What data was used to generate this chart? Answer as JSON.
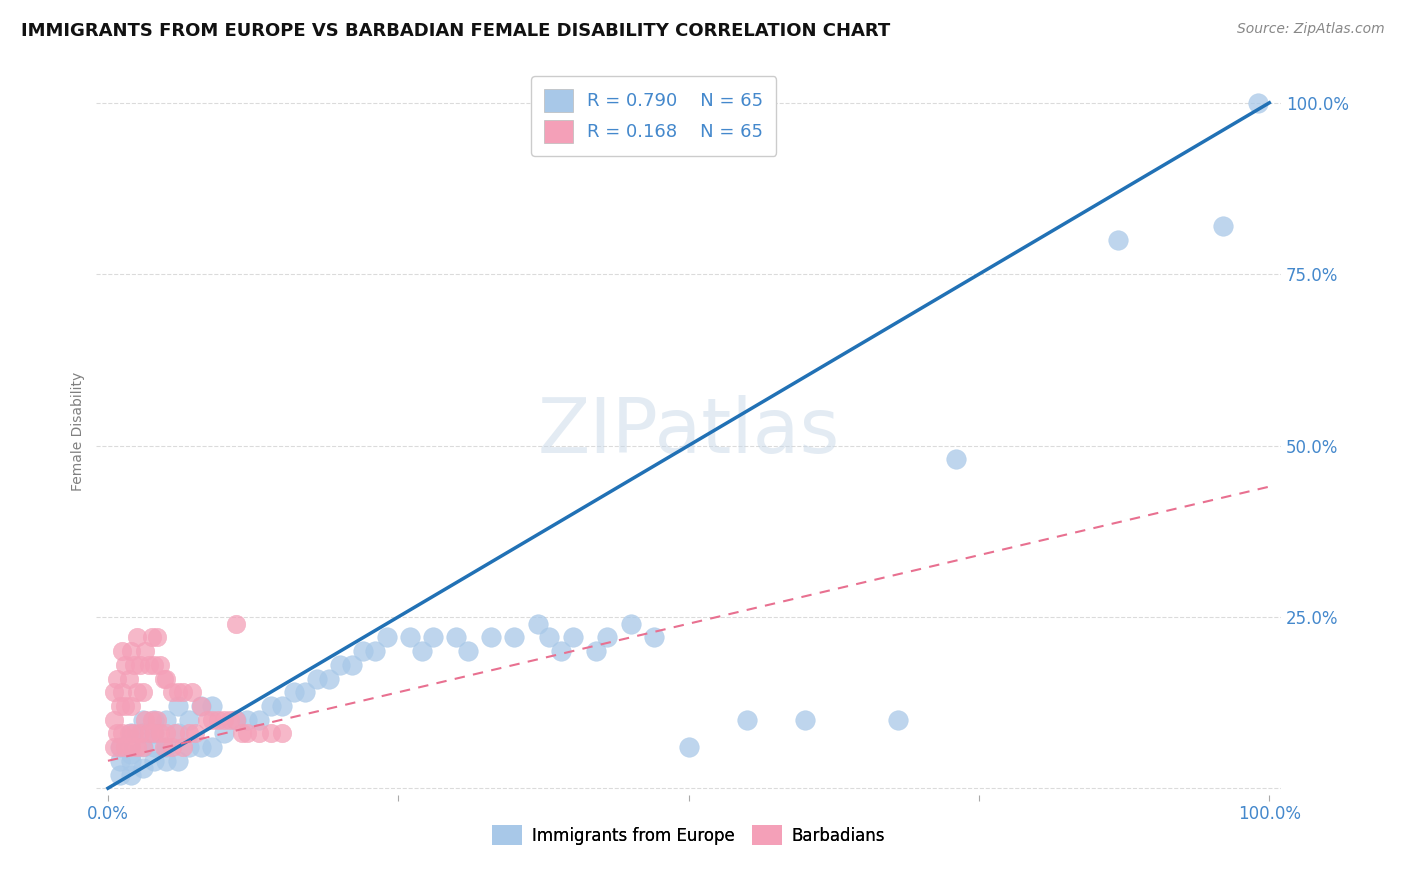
{
  "title": "IMMIGRANTS FROM EUROPE VS BARBADIAN FEMALE DISABILITY CORRELATION CHART",
  "source": "Source: ZipAtlas.com",
  "ylabel": "Female Disability",
  "legend_label1": "Immigrants from Europe",
  "legend_label2": "Barbadians",
  "r1": "0.790",
  "n1": "65",
  "r2": "0.168",
  "n2": "65",
  "watermark": "ZIPatlas",
  "blue_color": "#a8c8e8",
  "pink_color": "#f4a0b8",
  "blue_line_color": "#2171b5",
  "pink_line_color": "#e87090",
  "blue_scatter_x": [
    0.01,
    0.01,
    0.01,
    0.02,
    0.02,
    0.02,
    0.02,
    0.03,
    0.03,
    0.03,
    0.03,
    0.04,
    0.04,
    0.04,
    0.04,
    0.05,
    0.05,
    0.05,
    0.06,
    0.06,
    0.06,
    0.07,
    0.07,
    0.08,
    0.08,
    0.09,
    0.09,
    0.1,
    0.11,
    0.12,
    0.13,
    0.14,
    0.15,
    0.16,
    0.17,
    0.18,
    0.19,
    0.2,
    0.21,
    0.22,
    0.23,
    0.24,
    0.26,
    0.27,
    0.28,
    0.3,
    0.31,
    0.33,
    0.35,
    0.37,
    0.38,
    0.39,
    0.4,
    0.42,
    0.43,
    0.45,
    0.47,
    0.5,
    0.55,
    0.6,
    0.68,
    0.73,
    0.87,
    0.96,
    0.99
  ],
  "blue_scatter_y": [
    0.02,
    0.04,
    0.06,
    0.02,
    0.04,
    0.05,
    0.08,
    0.03,
    0.06,
    0.08,
    0.1,
    0.04,
    0.06,
    0.08,
    0.1,
    0.04,
    0.06,
    0.1,
    0.04,
    0.08,
    0.12,
    0.06,
    0.1,
    0.06,
    0.12,
    0.06,
    0.12,
    0.08,
    0.1,
    0.1,
    0.1,
    0.12,
    0.12,
    0.14,
    0.14,
    0.16,
    0.16,
    0.18,
    0.18,
    0.2,
    0.2,
    0.22,
    0.22,
    0.2,
    0.22,
    0.22,
    0.2,
    0.22,
    0.22,
    0.24,
    0.22,
    0.2,
    0.22,
    0.2,
    0.22,
    0.24,
    0.22,
    0.06,
    0.1,
    0.1,
    0.1,
    0.48,
    0.8,
    0.82,
    1.0
  ],
  "pink_scatter_x": [
    0.005,
    0.005,
    0.005,
    0.008,
    0.008,
    0.01,
    0.01,
    0.012,
    0.012,
    0.012,
    0.015,
    0.015,
    0.015,
    0.018,
    0.018,
    0.02,
    0.02,
    0.02,
    0.022,
    0.022,
    0.025,
    0.025,
    0.025,
    0.028,
    0.028,
    0.03,
    0.03,
    0.032,
    0.032,
    0.035,
    0.035,
    0.038,
    0.038,
    0.04,
    0.04,
    0.042,
    0.042,
    0.045,
    0.045,
    0.048,
    0.048,
    0.05,
    0.05,
    0.055,
    0.055,
    0.058,
    0.06,
    0.065,
    0.065,
    0.07,
    0.072,
    0.075,
    0.08,
    0.085,
    0.09,
    0.095,
    0.1,
    0.105,
    0.11,
    0.115,
    0.12,
    0.13,
    0.14,
    0.15,
    0.11
  ],
  "pink_scatter_y": [
    0.06,
    0.1,
    0.14,
    0.08,
    0.16,
    0.06,
    0.12,
    0.08,
    0.14,
    0.2,
    0.06,
    0.12,
    0.18,
    0.08,
    0.16,
    0.06,
    0.12,
    0.2,
    0.08,
    0.18,
    0.06,
    0.14,
    0.22,
    0.08,
    0.18,
    0.06,
    0.14,
    0.1,
    0.2,
    0.08,
    0.18,
    0.1,
    0.22,
    0.08,
    0.18,
    0.1,
    0.22,
    0.08,
    0.18,
    0.06,
    0.16,
    0.08,
    0.16,
    0.06,
    0.14,
    0.08,
    0.14,
    0.06,
    0.14,
    0.08,
    0.14,
    0.08,
    0.12,
    0.1,
    0.1,
    0.1,
    0.1,
    0.1,
    0.1,
    0.08,
    0.08,
    0.08,
    0.08,
    0.08,
    0.24
  ],
  "blue_regline_x": [
    0.0,
    1.0
  ],
  "blue_regline_y": [
    0.0,
    1.0
  ],
  "pink_regline_x": [
    0.0,
    1.0
  ],
  "pink_regline_y": [
    0.04,
    0.44
  ],
  "xlim": [
    0.0,
    1.0
  ],
  "ylim": [
    0.0,
    1.05
  ],
  "xticks": [
    0.0,
    0.25,
    0.5,
    0.75,
    1.0
  ],
  "xticklabels": [
    "0.0%",
    "",
    "",
    "",
    "100.0%"
  ],
  "yticks_right": [
    0.0,
    0.25,
    0.5,
    0.75,
    1.0
  ],
  "yticklabels_right": [
    "",
    "25.0%",
    "50.0%",
    "75.0%",
    "100.0%"
  ],
  "tick_color": "#4488cc",
  "grid_color": "#cccccc",
  "title_fontsize": 13,
  "source_fontsize": 10,
  "legend_fontsize": 13,
  "watermark_fontsize": 55,
  "watermark_color": "#c8d8e8",
  "watermark_alpha": 0.5
}
